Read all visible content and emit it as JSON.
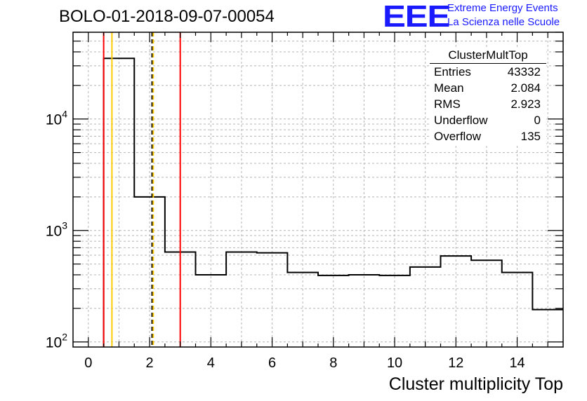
{
  "header": {
    "title": "BOLO-01-2018-09-07-00054",
    "logo_text": "EEE",
    "logo_line1": "Extreme Energy Events",
    "logo_line2": "La Scienza nelle Scuole"
  },
  "stats_box": {
    "name": "ClusterMultTop",
    "rows": [
      {
        "label": "Entries",
        "value": "43332"
      },
      {
        "label": "Mean",
        "value": "2.084"
      },
      {
        "label": "RMS",
        "value": "2.923"
      },
      {
        "label": "Underflow",
        "value": "0"
      },
      {
        "label": "Overflow",
        "value": "135"
      }
    ]
  },
  "chart_data": {
    "type": "histogram",
    "xlabel": "Cluster multiplicity Top",
    "ylabel": "",
    "xlim": [
      -0.5,
      15.5
    ],
    "ylim": [
      90,
      60000
    ],
    "yscale": "log",
    "grid": true,
    "x_ticks": [
      "0",
      "2",
      "4",
      "6",
      "8",
      "10",
      "12",
      "14"
    ],
    "y_ticks": [
      {
        "base": "10",
        "exp": "2",
        "value": 100
      },
      {
        "base": "10",
        "exp": "3",
        "value": 1000
      },
      {
        "base": "10",
        "exp": "4",
        "value": 10000
      }
    ],
    "bins": [
      {
        "lo": 0.5,
        "hi": 1.5,
        "value": 35000
      },
      {
        "lo": 1.5,
        "hi": 2.5,
        "value": 2000
      },
      {
        "lo": 2.5,
        "hi": 3.5,
        "value": 640
      },
      {
        "lo": 3.5,
        "hi": 4.5,
        "value": 400
      },
      {
        "lo": 4.5,
        "hi": 5.5,
        "value": 640
      },
      {
        "lo": 5.5,
        "hi": 6.5,
        "value": 630
      },
      {
        "lo": 6.5,
        "hi": 7.5,
        "value": 420
      },
      {
        "lo": 7.5,
        "hi": 8.5,
        "value": 395
      },
      {
        "lo": 8.5,
        "hi": 9.5,
        "value": 400
      },
      {
        "lo": 9.5,
        "hi": 10.5,
        "value": 395
      },
      {
        "lo": 10.5,
        "hi": 11.5,
        "value": 470
      },
      {
        "lo": 11.5,
        "hi": 12.5,
        "value": 590
      },
      {
        "lo": 12.5,
        "hi": 13.5,
        "value": 540
      },
      {
        "lo": 13.5,
        "hi": 14.5,
        "value": 420
      },
      {
        "lo": 14.5,
        "hi": 15.5,
        "value": 195
      }
    ],
    "vertical_lines": [
      {
        "x": 0.5,
        "color": "#ff0000",
        "style": "solid"
      },
      {
        "x": 0.77,
        "color": "#ffcc00",
        "style": "solid"
      },
      {
        "x": 2.08,
        "color": "#000000",
        "style": "dashed"
      },
      {
        "x": 2.12,
        "color": "#ffcc00",
        "style": "dashed"
      },
      {
        "x": 3.0,
        "color": "#ff0000",
        "style": "solid"
      }
    ]
  }
}
